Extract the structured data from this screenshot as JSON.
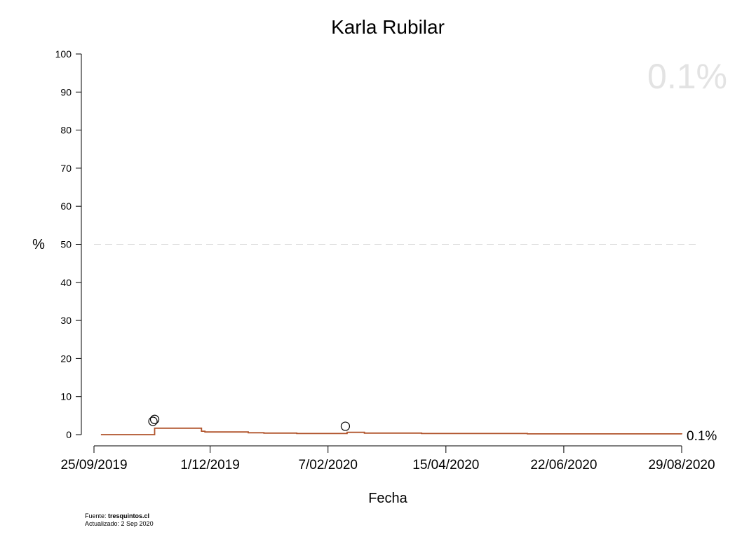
{
  "chart_data": {
    "type": "line",
    "title": "Karla Rubilar",
    "xlabel": "Fecha",
    "ylabel": "%",
    "ylim": [
      0,
      100
    ],
    "yticks": [
      0,
      10,
      20,
      30,
      40,
      50,
      60,
      70,
      80,
      90,
      100
    ],
    "xlim": [
      "2019-09-25",
      "2020-08-29"
    ],
    "xtick_dates": [
      "2019-09-25",
      "2019-12-01",
      "2020-02-07",
      "2020-04-15",
      "2020-06-22",
      "2020-08-29"
    ],
    "xtick_labels": [
      "25/09/2019",
      "1/12/2019",
      "7/02/2020",
      "15/04/2020",
      "22/06/2020",
      "29/08/2020"
    ],
    "reference_line": {
      "y": 50,
      "style": "dashed"
    },
    "grid": false,
    "current_value_label": "0.1%",
    "end_label": "0.1%",
    "series": [
      {
        "color": "#b0532b",
        "steps": [
          {
            "x": "2019-09-29",
            "y": 0
          },
          {
            "x": "2019-10-29",
            "y": 0
          },
          {
            "x": "2019-10-30",
            "y": 1.7
          },
          {
            "x": "2019-11-25",
            "y": 1.7
          },
          {
            "x": "2019-11-26",
            "y": 0.9
          },
          {
            "x": "2019-11-28",
            "y": 0.7
          },
          {
            "x": "2019-12-20",
            "y": 0.7
          },
          {
            "x": "2019-12-23",
            "y": 0.5
          },
          {
            "x": "2020-01-01",
            "y": 0.4
          },
          {
            "x": "2020-01-20",
            "y": 0.3
          },
          {
            "x": "2020-02-17",
            "y": 0.3
          },
          {
            "x": "2020-02-18",
            "y": 0.6
          },
          {
            "x": "2020-02-27",
            "y": 0.6
          },
          {
            "x": "2020-02-28",
            "y": 0.4
          },
          {
            "x": "2020-04-01",
            "y": 0.3
          },
          {
            "x": "2020-06-01",
            "y": 0.2
          },
          {
            "x": "2020-08-29",
            "y": 0.1
          }
        ]
      }
    ],
    "poll_points": [
      {
        "x": "2019-10-29",
        "y": 3.5
      },
      {
        "x": "2019-10-30",
        "y": 4.0
      },
      {
        "x": "2020-02-17",
        "y": 2.2
      }
    ]
  },
  "footer": {
    "source_prefix": "Fuente: ",
    "source_site": "tresquintos.cl",
    "updated": "Actualizado: 2 Sep 2020"
  }
}
